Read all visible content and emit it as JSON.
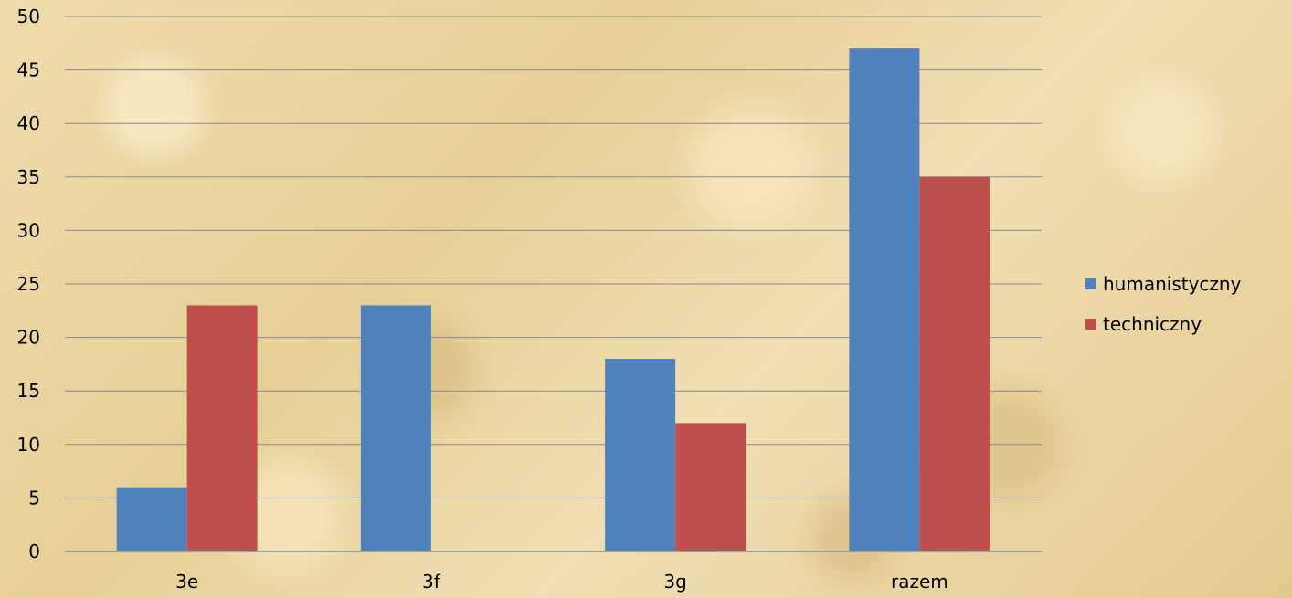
{
  "chart_data": {
    "type": "bar",
    "categories": [
      "3e",
      "3f",
      "3g",
      "razem"
    ],
    "series": [
      {
        "name": "humanistyczny",
        "values": [
          6,
          23,
          18,
          47
        ],
        "color": "#4f81bd"
      },
      {
        "name": "techniczny",
        "values": [
          23,
          0,
          12,
          35
        ],
        "color": "#c0504d"
      }
    ],
    "ylim": [
      0,
      50
    ],
    "yticks": [
      0,
      5,
      10,
      15,
      20,
      25,
      30,
      35,
      40,
      45,
      50
    ],
    "grid": true,
    "legend_position": "right",
    "gridline_color": "#8a8a8a"
  }
}
